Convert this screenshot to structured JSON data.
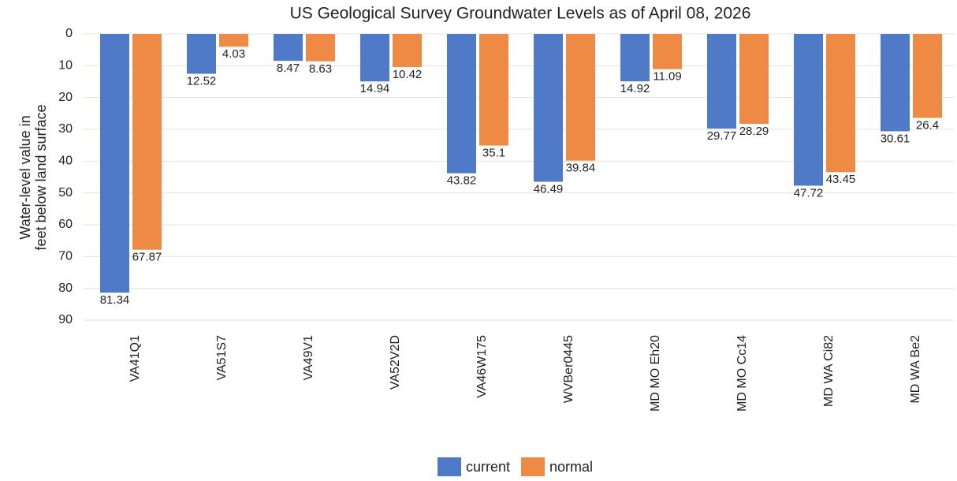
{
  "chart_data": {
    "type": "bar",
    "title": "US Geological Survey Groundwater Levels as of April 08, 2026",
    "ylabel": [
      "Water-level value in",
      "feet below land surface"
    ],
    "categories": [
      "VA41Q1",
      "VA51S7",
      "VA49V1",
      "VA52V2D",
      "VA46W175",
      "WVBer0445",
      "MD MO Eh20",
      "MD MO Cc14",
      "MD WA Ci82",
      "MD WA Be2"
    ],
    "series": [
      {
        "name": "current",
        "color": "#4e7ac7",
        "values": [
          81.34,
          12.52,
          8.47,
          14.94,
          43.82,
          46.49,
          14.92,
          29.77,
          47.72,
          30.61
        ]
      },
      {
        "name": "normal",
        "color": "#ef8a45",
        "values": [
          67.87,
          4.03,
          8.63,
          10.42,
          35.1,
          39.84,
          11.09,
          28.29,
          43.45,
          26.4
        ]
      }
    ],
    "ylim": [
      0,
      90
    ],
    "yticks": [
      0,
      10,
      20,
      30,
      40,
      50,
      60,
      70,
      80,
      90
    ],
    "y_inverted": true,
    "grid": true,
    "legend": "bottom"
  }
}
